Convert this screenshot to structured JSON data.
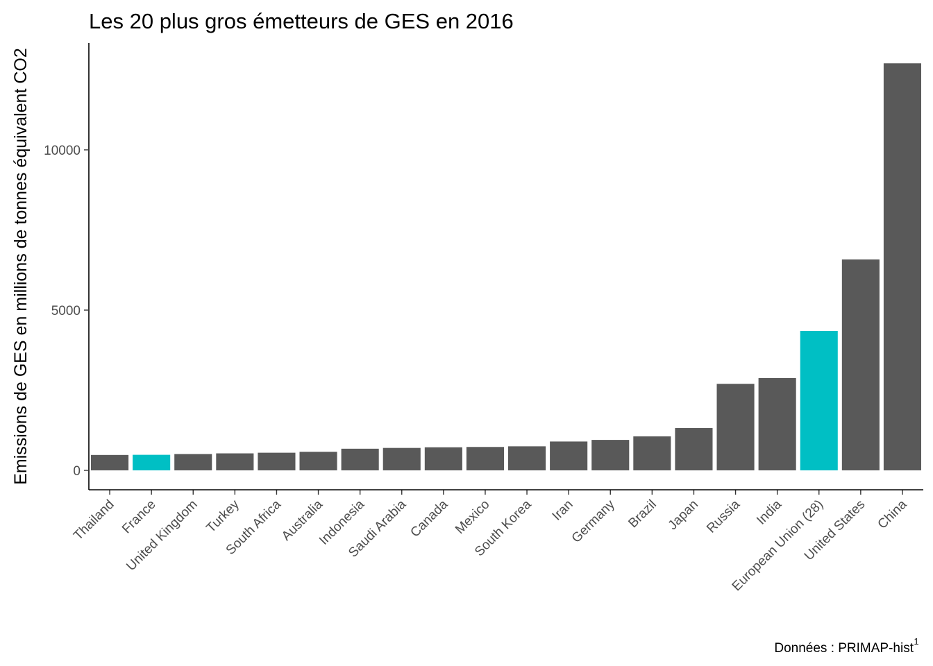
{
  "chart_data": {
    "type": "bar",
    "title": "Les 20 plus gros émetteurs de GES en 2016",
    "ylabel": "Emissions de GES en millions de tonnes équivalent CO2",
    "xlabel": "",
    "caption": "Données : PRIMAP-hist",
    "caption_superscript": "1",
    "categories": [
      "Thailand",
      "France",
      "United Kingdom",
      "Turkey",
      "South Africa",
      "Australia",
      "Indonesia",
      "Saudi Arabia",
      "Canada",
      "Mexico",
      "South Korea",
      "Iran",
      "Germany",
      "Brazil",
      "Japan",
      "Russia",
      "India",
      "European Union (28)",
      "United States",
      "China"
    ],
    "values": [
      480,
      485,
      510,
      530,
      550,
      580,
      675,
      700,
      720,
      730,
      750,
      900,
      950,
      1060,
      1320,
      2700,
      2880,
      4350,
      6580,
      12700
    ],
    "highlighted": [
      "France",
      "European Union (28)"
    ],
    "yticks": [
      0,
      5000,
      10000
    ],
    "ylim": [
      -600,
      13300
    ],
    "grid": false,
    "legend": "none",
    "colors": {
      "default": "#595959",
      "highlight": "#00bfc4"
    }
  }
}
